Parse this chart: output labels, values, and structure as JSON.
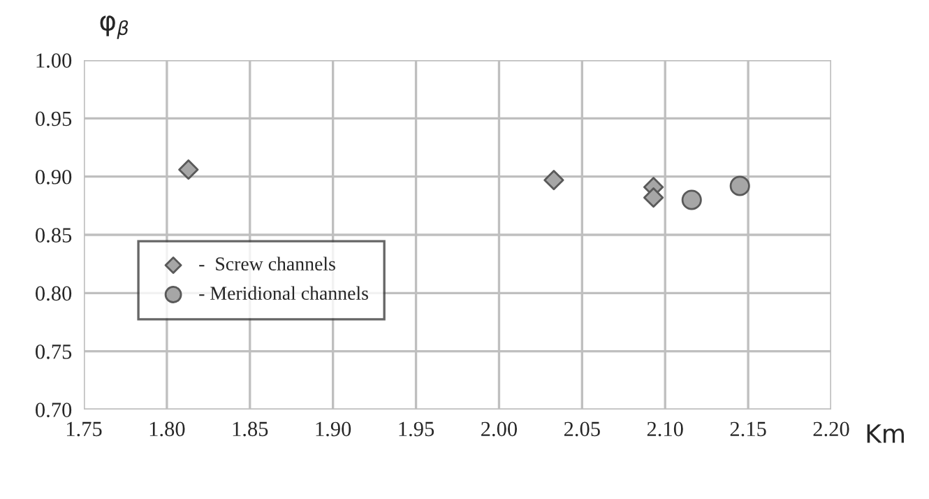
{
  "chart_data": {
    "type": "scatter",
    "xlabel": "Km",
    "ylabel": "φ$_{β}$",
    "series": [
      {
        "name": "-  Screw channels",
        "color": "#a6a6a6",
        "marker": "diamond",
        "x": [
          1.813,
          2.033,
          2.093,
          2.093
        ],
        "values": [
          0.906,
          0.897,
          0.891,
          0.882
        ]
      },
      {
        "name": "- Meridional channels",
        "color": "#a6a6a6",
        "marker": "circle",
        "x": [
          2.116,
          2.145
        ],
        "values": [
          0.88,
          0.892
        ]
      }
    ],
    "xlim": [
      1.75,
      2.2
    ],
    "xticks": [
      {
        "value": 1.75,
        "label": "1.75"
      },
      {
        "value": 1.8,
        "label": "1.80"
      },
      {
        "value": 1.85,
        "label": "1.85"
      },
      {
        "value": 1.9,
        "label": "1.90"
      },
      {
        "value": 1.95,
        "label": "1.95"
      },
      {
        "value": 2.0,
        "label": "2.00"
      },
      {
        "value": 2.05,
        "label": "2.05"
      },
      {
        "value": 2.1,
        "label": "2.10"
      },
      {
        "value": 2.15,
        "label": "2.15"
      },
      {
        "value": 2.2,
        "label": "2.20"
      }
    ],
    "ylim": [
      0.7,
      1.0
    ],
    "yticks": [
      {
        "value": 0.7,
        "label": "0.70"
      },
      {
        "value": 0.75,
        "label": "0.75"
      },
      {
        "value": 0.8,
        "label": "0.80"
      },
      {
        "value": 0.85,
        "label": "0.85"
      },
      {
        "value": 0.9,
        "label": "0.90"
      },
      {
        "value": 0.95,
        "label": "0.95"
      },
      {
        "value": 1.0,
        "label": "1.00"
      }
    ],
    "grid": true,
    "legend": "left"
  }
}
